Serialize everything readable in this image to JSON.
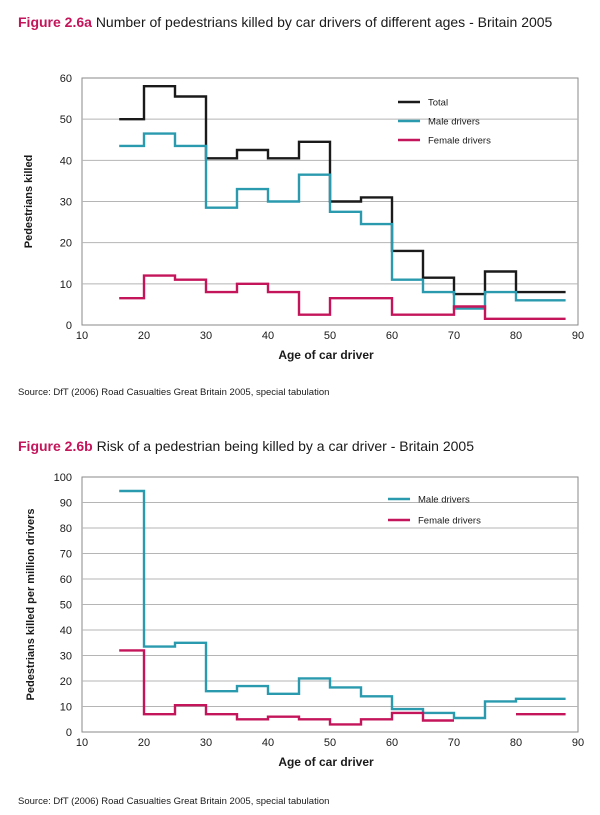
{
  "figures": [
    {
      "number": "Figure 2.6a",
      "title": "Number of pedestrians killed by car drivers of different ages - Britain 2005",
      "source": "Source: DfT (2006) Road Casualties Great Britain 2005, special tabulation"
    },
    {
      "number": "Figure 2.6b",
      "title": "Risk of a pedestrian being killed by a car driver - Britain 2005",
      "source": "Source: DfT (2006) Road Casualties Great Britain 2005, special tabulation"
    }
  ],
  "chart_data": [
    {
      "type": "line",
      "step": true,
      "title": "Number of pedestrians killed by car drivers of different ages - Britain 2005",
      "xlabel": "Age of car driver",
      "ylabel": "Pedestrians killed",
      "xlim": [
        10,
        90
      ],
      "ylim": [
        0,
        60
      ],
      "xticks": [
        10,
        20,
        30,
        40,
        50,
        60,
        70,
        80,
        90
      ],
      "yticks": [
        0,
        10,
        20,
        30,
        40,
        50,
        60
      ],
      "grid": true,
      "legend": "top-right",
      "bin_edges": [
        16,
        20,
        25,
        30,
        35,
        40,
        45,
        50,
        55,
        60,
        65,
        70,
        75,
        80,
        88
      ],
      "series": [
        {
          "name": "Total",
          "color": "#1a1a1a",
          "values": [
            50,
            58,
            55.5,
            40.5,
            42.5,
            40.5,
            44.5,
            30,
            31,
            18,
            11.5,
            7.5,
            13,
            8
          ]
        },
        {
          "name": "Male drivers",
          "color": "#2a9aae",
          "values": [
            43.5,
            46.5,
            43.5,
            28.5,
            33,
            30,
            36.5,
            27.5,
            24.5,
            11,
            8,
            4,
            8,
            6
          ]
        },
        {
          "name": "Female drivers",
          "color": "#c4145a",
          "values": [
            6.5,
            12,
            11,
            8,
            10,
            8,
            2.5,
            6.5,
            6.5,
            2.5,
            2.5,
            4.5,
            1.5,
            1.5
          ]
        }
      ]
    },
    {
      "type": "line",
      "step": true,
      "title": "Risk of a pedestrian being killed by a car driver - Britain 2005",
      "xlabel": "Age of car driver",
      "ylabel": "Pedestrians killed per million drivers",
      "xlim": [
        10,
        90
      ],
      "ylim": [
        0,
        100
      ],
      "xticks": [
        10,
        20,
        30,
        40,
        50,
        60,
        70,
        80,
        90
      ],
      "yticks": [
        0,
        10,
        20,
        30,
        40,
        50,
        60,
        70,
        80,
        90,
        100
      ],
      "grid": true,
      "legend": "top-right",
      "bin_edges": [
        16,
        20,
        25,
        30,
        35,
        40,
        45,
        50,
        55,
        60,
        65,
        70,
        75,
        80,
        88
      ],
      "series": [
        {
          "name": "Male drivers",
          "color": "#2a9aae",
          "values": [
            94.5,
            33.5,
            35,
            16,
            18,
            15,
            21,
            17.5,
            14,
            9,
            7.5,
            5.5,
            12,
            13
          ]
        },
        {
          "name": "Female drivers",
          "color": "#c4145a",
          "values": [
            32,
            7,
            10.5,
            7,
            5,
            6,
            5,
            3,
            5,
            7.5,
            4.5,
            null,
            null,
            7
          ]
        }
      ]
    }
  ]
}
